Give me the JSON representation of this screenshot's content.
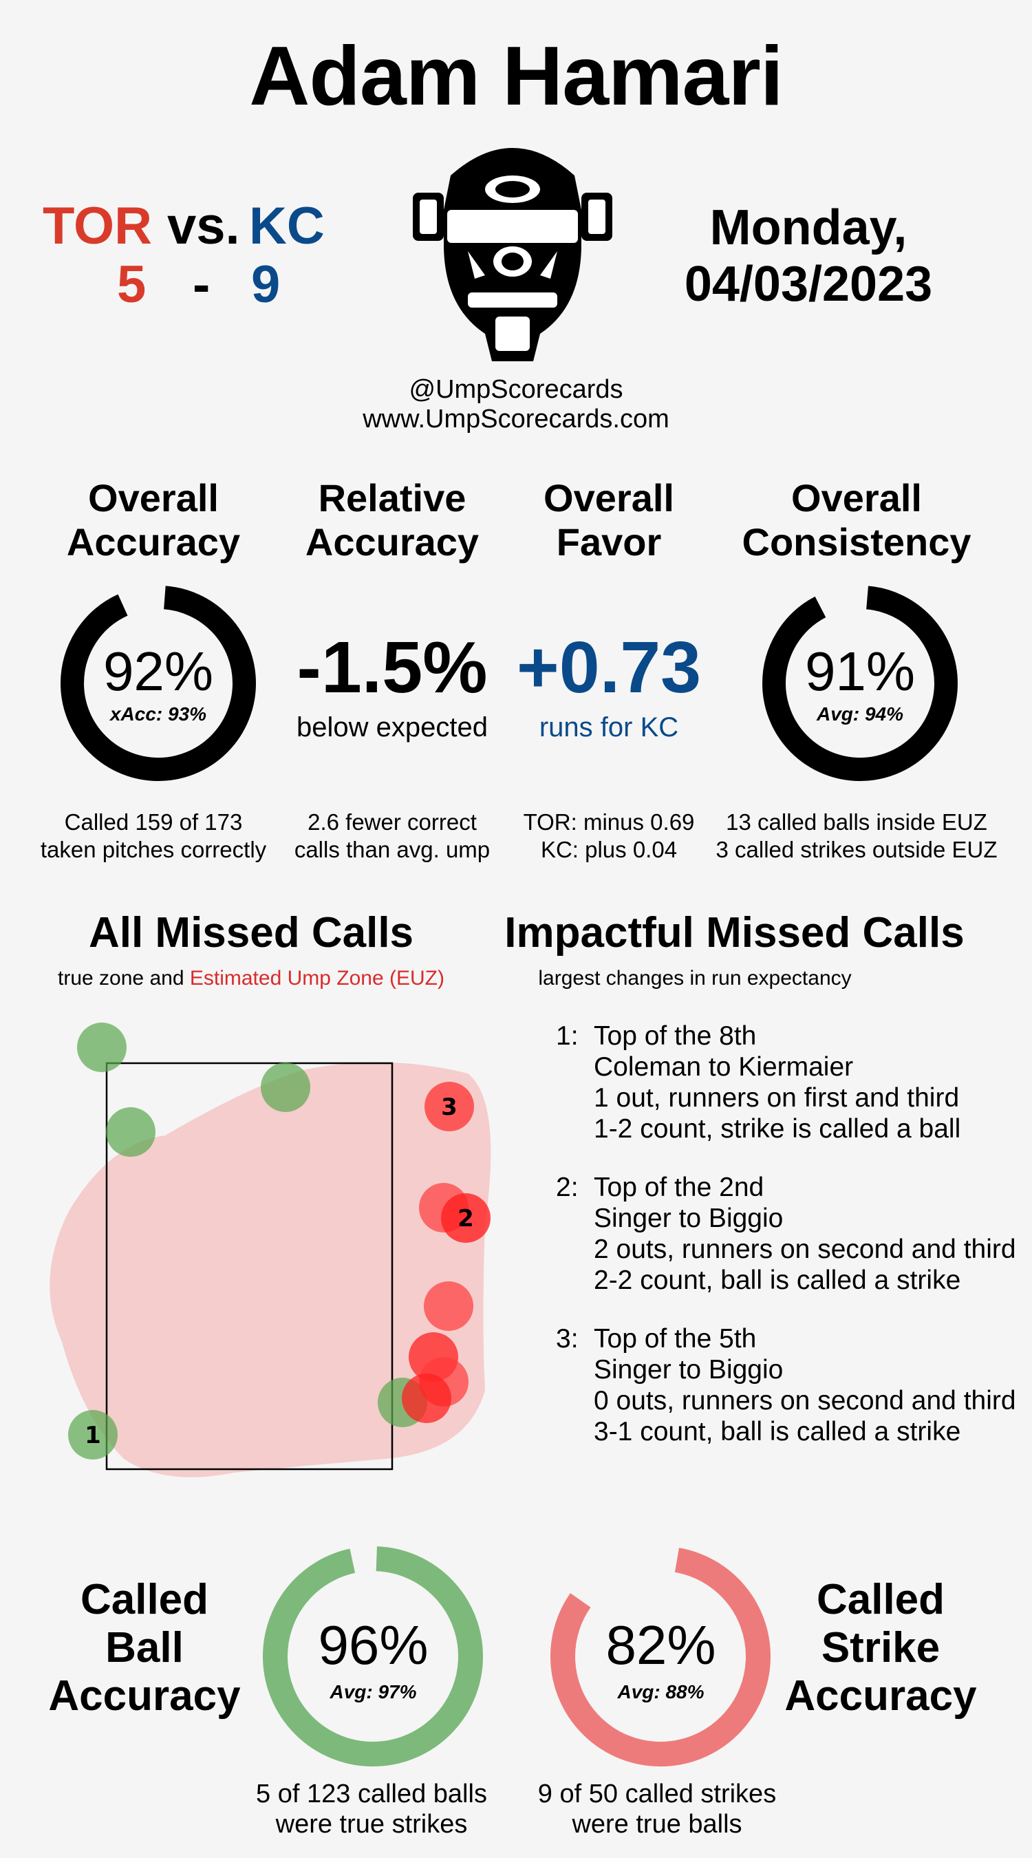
{
  "umpire": {
    "name": "Adam Hamari"
  },
  "game": {
    "away_team": "TOR",
    "vs": "vs.",
    "home_team": "KC",
    "away_score": "5",
    "score_sep": "-",
    "home_score": "9",
    "date_line_1": "Monday,",
    "date_line_2": "04/03/2023",
    "away_color": "#d93b2b",
    "home_color": "#0a4a8a"
  },
  "branding": {
    "handle": "@UmpScorecards",
    "website": "www.UmpScorecards.com",
    "icon": "umpire-mask-icon"
  },
  "stats": {
    "overall_accuracy": {
      "title_1": "Overall",
      "title_2": "Accuracy",
      "value": "92%",
      "sub": "xAcc: 93%",
      "fraction": 0.92,
      "detail_1": "Called 159 of 173",
      "detail_2": "taken pitches correctly"
    },
    "relative_accuracy": {
      "title_1": "Relative",
      "title_2": "Accuracy",
      "value": "-1.5%",
      "sub": "below expected",
      "detail_1": "2.6 fewer correct",
      "detail_2": "calls than avg. ump"
    },
    "overall_favor": {
      "title_1": "Overall",
      "title_2": "Favor",
      "value": "+0.73",
      "sub": "runs for KC",
      "detail_1": "TOR: minus 0.69",
      "detail_2": "KC: plus 0.04"
    },
    "overall_consistency": {
      "title_1": "Overall",
      "title_2": "Consistency",
      "value": "91%",
      "sub": "Avg: 94%",
      "fraction": 0.91,
      "detail_1": "13 called balls inside EUZ",
      "detail_2": "3 called strikes outside EUZ"
    }
  },
  "missed_calls": {
    "title": "All Missed Calls",
    "sub_prefix": "true zone and",
    "sub_highlight": "Estimated Ump Zone (EUZ)",
    "sub_highlight_color": "#d92b2b",
    "ball_color": "#5aa84f",
    "strike_color": "#ff3b3b",
    "markers": [
      {
        "label": "1",
        "type": "ball"
      },
      {
        "label": "2",
        "type": "strike"
      },
      {
        "label": "3",
        "type": "strike"
      }
    ]
  },
  "impactful": {
    "title": "Impactful Missed Calls",
    "sub": "largest changes in run expectancy",
    "items": [
      {
        "num": "1:",
        "lines": [
          "Top of the 8th",
          "Coleman to Kiermaier",
          "1 out, runners on first and third",
          "1-2 count, strike is called a ball"
        ]
      },
      {
        "num": "2:",
        "lines": [
          "Top of the 2nd",
          "Singer to Biggio",
          "2 outs, runners on second and third",
          "2-2 count, ball is called a strike"
        ]
      },
      {
        "num": "3:",
        "lines": [
          "Top of the 5th",
          "Singer to Biggio",
          "0 outs, runners on second and third",
          "3-1 count, ball is called a strike"
        ]
      }
    ]
  },
  "called_ball": {
    "title_1": "Called",
    "title_2": "Ball",
    "title_3": "Accuracy",
    "value": "96%",
    "sub": "Avg: 97%",
    "fraction": 0.96,
    "color": "#7db97b",
    "detail_1": "5 of 123 called balls",
    "detail_2": "were true strikes"
  },
  "called_strike": {
    "title_1": "Called",
    "title_2": "Strike",
    "title_3": "Accuracy",
    "value": "82%",
    "sub": "Avg: 88%",
    "fraction": 0.82,
    "color": "#ee7b7b",
    "detail_1": "9 of 50 called strikes",
    "detail_2": "were true balls"
  }
}
